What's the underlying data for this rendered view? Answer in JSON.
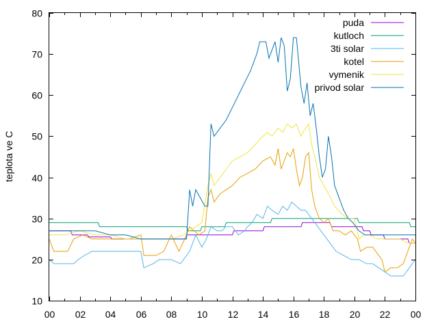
{
  "chart_data": {
    "type": "line",
    "title": "",
    "xlabel": "",
    "ylabel": "teplota ve C",
    "xlim": [
      0,
      24
    ],
    "ylim": [
      10,
      80
    ],
    "x_ticks": [
      "00",
      "02",
      "04",
      "06",
      "08",
      "10",
      "12",
      "14",
      "16",
      "18",
      "20",
      "22",
      "00"
    ],
    "y_ticks": [
      "10",
      "20",
      "30",
      "40",
      "50",
      "60",
      "70",
      "80"
    ],
    "grid": false,
    "legend_position": "top-right",
    "series": [
      {
        "name": "puda",
        "color": "#9400d3",
        "points": [
          [
            0,
            27
          ],
          [
            1.4,
            27
          ],
          [
            1.5,
            26
          ],
          [
            2.5,
            26
          ],
          [
            2.6,
            25.5
          ],
          [
            4,
            25.5
          ],
          [
            4.1,
            25
          ],
          [
            8.9,
            25
          ],
          [
            9,
            26
          ],
          [
            12,
            26
          ],
          [
            12.1,
            27
          ],
          [
            14,
            27
          ],
          [
            14.1,
            28
          ],
          [
            16.5,
            28
          ],
          [
            16.6,
            29
          ],
          [
            18.4,
            29
          ],
          [
            18.5,
            28
          ],
          [
            20.5,
            28
          ],
          [
            20.6,
            27
          ],
          [
            21,
            27
          ],
          [
            21.1,
            26
          ],
          [
            21.9,
            26
          ],
          [
            22,
            25
          ],
          [
            23.5,
            25
          ],
          [
            23.6,
            24
          ],
          [
            24,
            24
          ]
        ]
      },
      {
        "name": "kutloch",
        "color": "#009e73",
        "points": [
          [
            0,
            29
          ],
          [
            3.2,
            29
          ],
          [
            3.3,
            28
          ],
          [
            9,
            28
          ],
          [
            9.1,
            27
          ],
          [
            9.9,
            27
          ],
          [
            10,
            28
          ],
          [
            11.5,
            28
          ],
          [
            11.6,
            29
          ],
          [
            14.5,
            29
          ],
          [
            14.6,
            30
          ],
          [
            20.2,
            30
          ],
          [
            20.3,
            29
          ],
          [
            23.6,
            29
          ],
          [
            23.7,
            28
          ],
          [
            24,
            28
          ]
        ]
      },
      {
        "name": "3ti solar",
        "color": "#56b4e9",
        "points": [
          [
            0,
            20
          ],
          [
            0.3,
            19
          ],
          [
            1.6,
            19
          ],
          [
            1.9,
            20
          ],
          [
            2.3,
            21
          ],
          [
            2.8,
            22
          ],
          [
            6,
            22
          ],
          [
            6.2,
            18
          ],
          [
            6.8,
            19
          ],
          [
            7.2,
            20
          ],
          [
            7.6,
            20
          ],
          [
            8,
            20
          ],
          [
            8.6,
            19
          ],
          [
            9.2,
            22
          ],
          [
            9.6,
            26
          ],
          [
            10,
            23
          ],
          [
            10.3,
            25
          ],
          [
            10.6,
            28
          ],
          [
            11,
            27
          ],
          [
            11.3,
            27
          ],
          [
            11.6,
            28
          ],
          [
            12,
            28
          ],
          [
            12.4,
            26
          ],
          [
            12.8,
            27
          ],
          [
            13,
            28
          ],
          [
            13.3,
            29
          ],
          [
            13.6,
            31
          ],
          [
            14,
            30
          ],
          [
            14.3,
            33
          ],
          [
            14.6,
            32
          ],
          [
            15,
            31
          ],
          [
            15.3,
            33
          ],
          [
            15.6,
            32
          ],
          [
            15.9,
            34
          ],
          [
            16.2,
            33
          ],
          [
            16.5,
            32
          ],
          [
            16.8,
            32
          ],
          [
            17.2,
            30
          ],
          [
            17.6,
            28
          ],
          [
            18,
            26
          ],
          [
            18.4,
            24
          ],
          [
            18.8,
            22
          ],
          [
            19.3,
            21
          ],
          [
            19.8,
            20
          ],
          [
            20.3,
            20
          ],
          [
            20.8,
            19
          ],
          [
            21.2,
            19
          ],
          [
            21.6,
            18
          ],
          [
            22,
            17
          ],
          [
            22.4,
            16
          ],
          [
            22.8,
            16
          ],
          [
            23.2,
            16
          ],
          [
            23.6,
            18
          ],
          [
            24,
            20
          ]
        ]
      },
      {
        "name": "kotel",
        "color": "#e69f00",
        "points": [
          [
            0,
            25
          ],
          [
            0.3,
            22
          ],
          [
            1.2,
            22
          ],
          [
            1.6,
            25
          ],
          [
            2.2,
            26
          ],
          [
            2.8,
            25
          ],
          [
            4,
            25
          ],
          [
            4.5,
            25
          ],
          [
            5.2,
            25
          ],
          [
            6,
            26
          ],
          [
            6.2,
            21
          ],
          [
            7,
            21
          ],
          [
            7.5,
            22
          ],
          [
            8,
            26
          ],
          [
            8.5,
            22
          ],
          [
            9,
            26
          ],
          [
            9.2,
            28
          ],
          [
            9.5,
            27
          ],
          [
            9.8,
            26
          ],
          [
            10.2,
            27
          ],
          [
            10.4,
            35
          ],
          [
            10.6,
            37
          ],
          [
            10.8,
            34
          ],
          [
            11.2,
            36
          ],
          [
            11.6,
            37
          ],
          [
            12,
            38
          ],
          [
            12.5,
            40
          ],
          [
            13,
            41
          ],
          [
            13.5,
            42
          ],
          [
            14,
            44
          ],
          [
            14.5,
            45
          ],
          [
            14.8,
            43
          ],
          [
            15,
            47
          ],
          [
            15.2,
            42
          ],
          [
            15.4,
            44
          ],
          [
            15.6,
            46
          ],
          [
            15.8,
            45
          ],
          [
            16,
            47
          ],
          [
            16.2,
            42
          ],
          [
            16.4,
            38
          ],
          [
            16.6,
            40
          ],
          [
            16.8,
            45
          ],
          [
            17,
            46
          ],
          [
            17.2,
            37
          ],
          [
            17.4,
            33
          ],
          [
            17.7,
            30
          ],
          [
            18,
            29
          ],
          [
            18.3,
            30
          ],
          [
            18.6,
            27
          ],
          [
            19,
            27
          ],
          [
            19.4,
            26
          ],
          [
            19.8,
            27
          ],
          [
            20.2,
            25
          ],
          [
            20.4,
            22
          ],
          [
            20.8,
            23
          ],
          [
            21.2,
            23
          ],
          [
            21.6,
            21
          ],
          [
            21.8,
            20
          ],
          [
            22,
            17
          ],
          [
            22.4,
            18
          ],
          [
            22.8,
            18
          ],
          [
            23.2,
            19
          ],
          [
            23.5,
            22
          ],
          [
            23.8,
            25
          ],
          [
            24,
            24
          ]
        ]
      },
      {
        "name": "vymenik",
        "color": "#f0e442",
        "points": [
          [
            0,
            26
          ],
          [
            1,
            26
          ],
          [
            2,
            27
          ],
          [
            3,
            26
          ],
          [
            4,
            26
          ],
          [
            5,
            25
          ],
          [
            6,
            25
          ],
          [
            7,
            25
          ],
          [
            8,
            25
          ],
          [
            8.8,
            26
          ],
          [
            9.2,
            27
          ],
          [
            9.6,
            28
          ],
          [
            10,
            29
          ],
          [
            10.4,
            38
          ],
          [
            10.6,
            41
          ],
          [
            10.8,
            38
          ],
          [
            11.2,
            40
          ],
          [
            11.6,
            42
          ],
          [
            12,
            44
          ],
          [
            12.5,
            45
          ],
          [
            13,
            46
          ],
          [
            13.5,
            48
          ],
          [
            14,
            50
          ],
          [
            14.3,
            51
          ],
          [
            14.6,
            50
          ],
          [
            15,
            52
          ],
          [
            15.3,
            51
          ],
          [
            15.6,
            53
          ],
          [
            15.9,
            52
          ],
          [
            16.2,
            53
          ],
          [
            16.5,
            50
          ],
          [
            16.8,
            52
          ],
          [
            17,
            53
          ],
          [
            17.2,
            48
          ],
          [
            17.4,
            45
          ],
          [
            17.7,
            40
          ],
          [
            18,
            38
          ],
          [
            18.3,
            36
          ],
          [
            18.7,
            33
          ],
          [
            19.2,
            31
          ],
          [
            19.6,
            30
          ],
          [
            20,
            30
          ],
          [
            20.3,
            25
          ],
          [
            20.6,
            26
          ],
          [
            21,
            26
          ],
          [
            21.5,
            25
          ],
          [
            22,
            25
          ],
          [
            22.5,
            25
          ],
          [
            23,
            25
          ],
          [
            23.5,
            24
          ],
          [
            24,
            24
          ]
        ]
      },
      {
        "name": "privod solar",
        "color": "#0072b2",
        "points": [
          [
            0,
            27
          ],
          [
            1,
            27
          ],
          [
            2,
            27
          ],
          [
            3,
            27
          ],
          [
            4,
            26
          ],
          [
            5,
            26
          ],
          [
            6,
            25
          ],
          [
            7,
            25
          ],
          [
            8,
            25
          ],
          [
            9,
            25
          ],
          [
            9.2,
            37
          ],
          [
            9.4,
            33
          ],
          [
            9.6,
            37
          ],
          [
            9.9,
            35
          ],
          [
            10.2,
            33
          ],
          [
            10.4,
            33
          ],
          [
            10.6,
            53
          ],
          [
            10.8,
            50
          ],
          [
            11.2,
            52
          ],
          [
            11.6,
            54
          ],
          [
            12,
            57
          ],
          [
            12.4,
            60
          ],
          [
            12.8,
            63
          ],
          [
            13.2,
            66
          ],
          [
            13.6,
            70
          ],
          [
            13.8,
            73
          ],
          [
            14.2,
            73
          ],
          [
            14.4,
            69
          ],
          [
            14.6,
            71
          ],
          [
            14.8,
            73
          ],
          [
            15,
            68
          ],
          [
            15.2,
            74
          ],
          [
            15.4,
            72
          ],
          [
            15.6,
            61
          ],
          [
            15.8,
            64
          ],
          [
            16,
            74
          ],
          [
            16.2,
            74
          ],
          [
            16.5,
            62
          ],
          [
            16.7,
            58
          ],
          [
            16.9,
            63
          ],
          [
            17.1,
            55
          ],
          [
            17.3,
            58
          ],
          [
            17.5,
            52
          ],
          [
            17.7,
            45
          ],
          [
            17.9,
            40
          ],
          [
            18.1,
            42
          ],
          [
            18.3,
            50
          ],
          [
            18.5,
            45
          ],
          [
            18.7,
            38
          ],
          [
            19,
            35
          ],
          [
            19.3,
            32
          ],
          [
            19.6,
            30
          ],
          [
            19.9,
            29
          ],
          [
            20.3,
            27
          ],
          [
            20.7,
            26
          ],
          [
            21.2,
            26
          ],
          [
            21.8,
            26
          ],
          [
            22.4,
            26
          ],
          [
            23,
            26
          ],
          [
            23.5,
            26
          ],
          [
            24,
            26
          ]
        ]
      }
    ]
  }
}
